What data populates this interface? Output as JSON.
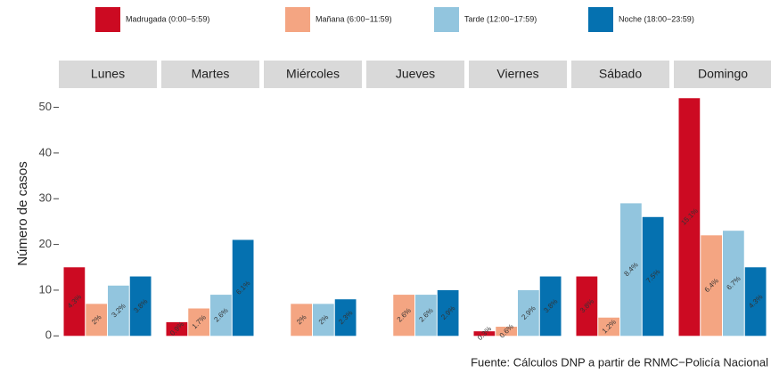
{
  "chart_data": {
    "type": "bar",
    "y_label": "Número de casos",
    "caption": "Fuente: Cálculos DNP a partir de RNMC−Policía Nacional",
    "categories": [
      "Lunes",
      "Martes",
      "Miércoles",
      "Jueves",
      "Viernes",
      "Sábado",
      "Domingo"
    ],
    "series": [
      {
        "name": "Madrugada (0:00−5:59)",
        "color": "#cc0a22",
        "values": [
          15,
          3,
          0,
          0,
          1,
          13,
          52
        ],
        "value_labels": [
          "4.3%",
          "0.9%",
          null,
          null,
          "0.3%",
          "3.8%",
          "15.1%"
        ]
      },
      {
        "name": "Mañana (6:00−11:59)",
        "color": "#f4a582",
        "values": [
          7,
          6,
          7,
          9,
          2,
          4,
          22
        ],
        "value_labels": [
          "2%",
          "1.7%",
          "2%",
          "2.6%",
          "0.6%",
          "1.2%",
          "6.4%"
        ]
      },
      {
        "name": "Tarde (12:00−17:59)",
        "color": "#92c5de",
        "values": [
          11,
          9,
          7,
          9,
          10,
          29,
          23
        ],
        "value_labels": [
          "3.2%",
          "2.6%",
          "2%",
          "2.6%",
          "2.9%",
          "8.4%",
          "6.7%"
        ]
      },
      {
        "name": "Noche (18:00−23:59)",
        "color": "#0571b0",
        "values": [
          13,
          21,
          8,
          10,
          13,
          26,
          15
        ],
        "value_labels": [
          "3.8%",
          "6.1%",
          "2.3%",
          "2.9%",
          "3.8%",
          "7.5%",
          "4.3%"
        ]
      }
    ],
    "ylim": [
      -1.5,
      54
    ],
    "yticks": [
      0,
      10,
      20,
      30,
      40,
      50
    ]
  }
}
